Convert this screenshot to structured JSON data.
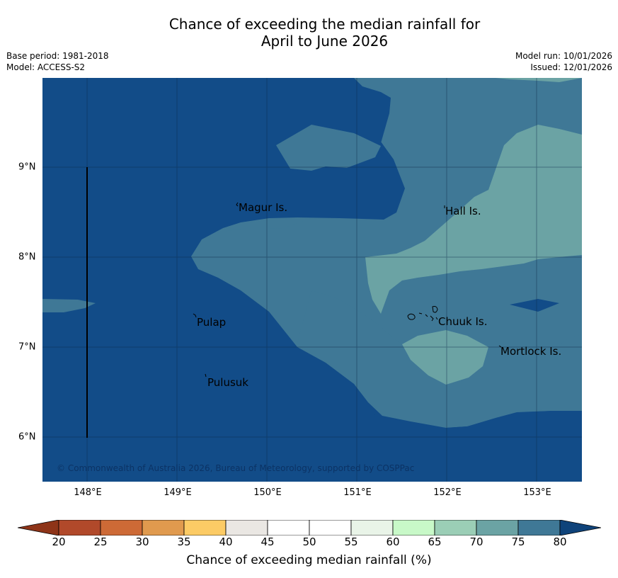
{
  "title": {
    "line1": "Chance of exceeding the median rainfall for",
    "line2": "April to June 2026"
  },
  "meta": {
    "base_period": "Base period: 1981-2018",
    "model": "Model: ACCESS-S2",
    "model_run": "Model run: 10/01/2026",
    "issued": "Issued: 12/01/2026"
  },
  "map": {
    "lat_labels": [
      "9°N",
      "8°N",
      "7°N",
      "6°N"
    ],
    "lon_labels": [
      "148°E",
      "149°E",
      "150°E",
      "151°E",
      "152°E",
      "153°E"
    ],
    "places": [
      "Magur Is.",
      "Hall Is.",
      "Pulap",
      "Chuuk Is.",
      "Mortlock Is.",
      "Pulusuk"
    ],
    "copyright": "© Commonwealth of Australia 2026, Bureau of Meteorology, supported by COSPPac",
    "colors": {
      "band_75_80": "#3f7896",
      "band_80_plus": "#124c88",
      "band_70_75": "#6ba3a4",
      "grid": "#0d2a4a"
    }
  },
  "colorbar": {
    "label": "Chance of exceeding median rainfall (%)",
    "ticks": [
      "20",
      "25",
      "30",
      "35",
      "40",
      "45",
      "50",
      "55",
      "60",
      "65",
      "70",
      "75",
      "80"
    ],
    "under_color": "#8e3418",
    "over_color": "#0f437a",
    "colors": [
      "#b1492a",
      "#cd6a36",
      "#e09a4e",
      "#fccb65",
      "#eae7e3",
      "#ffffff",
      "#ffffff",
      "#e9f4e8",
      "#c8f9c8",
      "#9bceb6",
      "#6ba3a4",
      "#3f7896"
    ]
  }
}
